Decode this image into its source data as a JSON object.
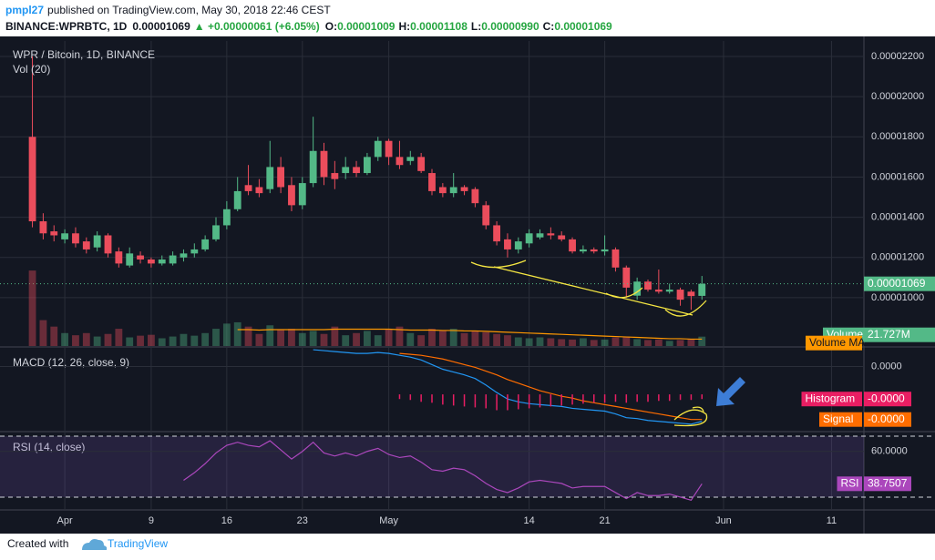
{
  "header": {
    "author": "pmpl27",
    "published": "published on TradingView.com, May 30, 2018 22:46 CEST",
    "symbol": "BINANCE:WPRBTC, 1D",
    "last": "0.00001069",
    "change": "▲ +0.00000061 (+6.05%)",
    "ohlc": [
      {
        "label": "O:",
        "value": "0.00001009"
      },
      {
        "label": "H:",
        "value": "0.00001108"
      },
      {
        "label": "L:",
        "value": "0.00000990"
      },
      {
        "label": "C:",
        "value": "0.00001069"
      }
    ]
  },
  "chart_data": [
    {
      "type": "candlestick",
      "title": "WPR / Bitcoin, 1D, BINANCE",
      "up_color": "#53b987",
      "down_color": "#eb4d5c",
      "grid": true,
      "x": [
        "2018-03-29",
        "2018-03-30",
        "2018-03-31",
        "2018-04-01",
        "2018-04-02",
        "2018-04-03",
        "2018-04-04",
        "2018-04-05",
        "2018-04-06",
        "2018-04-07",
        "2018-04-08",
        "2018-04-09",
        "2018-04-10",
        "2018-04-11",
        "2018-04-12",
        "2018-04-13",
        "2018-04-14",
        "2018-04-15",
        "2018-04-16",
        "2018-04-17",
        "2018-04-18",
        "2018-04-19",
        "2018-04-20",
        "2018-04-21",
        "2018-04-22",
        "2018-04-23",
        "2018-04-24",
        "2018-04-25",
        "2018-04-26",
        "2018-04-27",
        "2018-04-28",
        "2018-04-29",
        "2018-04-30",
        "2018-05-01",
        "2018-05-02",
        "2018-05-03",
        "2018-05-04",
        "2018-05-05",
        "2018-05-06",
        "2018-05-07",
        "2018-05-08",
        "2018-05-09",
        "2018-05-10",
        "2018-05-11",
        "2018-05-12",
        "2018-05-13",
        "2018-05-14",
        "2018-05-15",
        "2018-05-16",
        "2018-05-17",
        "2018-05-18",
        "2018-05-19",
        "2018-05-20",
        "2018-05-21",
        "2018-05-22",
        "2018-05-23",
        "2018-05-24",
        "2018-05-25",
        "2018-05-26",
        "2018-05-27",
        "2018-05-28",
        "2018-05-29",
        "2018-05-30"
      ],
      "open": [
        1.8e-05,
        1.38e-05,
        1.33e-05,
        1.29e-05,
        1.32e-05,
        1.28e-05,
        1.25e-05,
        1.31e-05,
        1.23e-05,
        1.16e-05,
        1.21e-05,
        1.19e-05,
        1.17e-05,
        1.17e-05,
        1.2e-05,
        1.22e-05,
        1.24e-05,
        1.29e-05,
        1.36e-05,
        1.44e-05,
        1.56e-05,
        1.55e-05,
        1.54e-05,
        1.65e-05,
        1.56e-05,
        1.46e-05,
        1.57e-05,
        1.73e-05,
        1.62e-05,
        1.62e-05,
        1.65e-05,
        1.62e-05,
        1.7e-05,
        1.78e-05,
        1.7e-05,
        1.68e-05,
        1.7e-05,
        1.62e-05,
        1.55e-05,
        1.52e-05,
        1.55e-05,
        1.54e-05,
        1.46e-05,
        1.36e-05,
        1.29e-05,
        1.24e-05,
        1.27e-05,
        1.3e-05,
        1.32e-05,
        1.31e-05,
        1.29e-05,
        1.23e-05,
        1.24e-05,
        1.23e-05,
        1.24e-05,
        1.15e-05,
        1.01e-05,
        1.08e-05,
        1.04e-05,
        1.03e-05,
        1.04e-05,
        1.03e-05,
        1.009e-05
      ],
      "high": [
        2.2e-05,
        1.42e-05,
        1.36e-05,
        1.34e-05,
        1.35e-05,
        1.3e-05,
        1.33e-05,
        1.32e-05,
        1.25e-05,
        1.25e-05,
        1.23e-05,
        1.2e-05,
        1.21e-05,
        1.23e-05,
        1.24e-05,
        1.27e-05,
        1.31e-05,
        1.4e-05,
        1.48e-05,
        1.6e-05,
        1.66e-05,
        1.59e-05,
        1.78e-05,
        1.7e-05,
        1.6e-05,
        1.6e-05,
        1.9e-05,
        1.77e-05,
        1.68e-05,
        1.7e-05,
        1.68e-05,
        1.72e-05,
        1.8e-05,
        1.79e-05,
        1.78e-05,
        1.73e-05,
        1.72e-05,
        1.64e-05,
        1.57e-05,
        1.62e-05,
        1.56e-05,
        1.55e-05,
        1.48e-05,
        1.38e-05,
        1.32e-05,
        1.3e-05,
        1.34e-05,
        1.34e-05,
        1.35e-05,
        1.33e-05,
        1.3e-05,
        1.26e-05,
        1.25e-05,
        1.31e-05,
        1.25e-05,
        1.16e-05,
        1.1e-05,
        1.09e-05,
        1.14e-05,
        1.07e-05,
        1.05e-05,
        1.04e-05,
        1.108e-05
      ],
      "low": [
        1.35e-05,
        1.29e-05,
        1.28e-05,
        1.27e-05,
        1.25e-05,
        1.22e-05,
        1.23e-05,
        1.2e-05,
        1.15e-05,
        1.15e-05,
        1.17e-05,
        1.15e-05,
        1.16e-05,
        1.16e-05,
        1.18e-05,
        1.2e-05,
        1.23e-05,
        1.28e-05,
        1.34e-05,
        1.43e-05,
        1.51e-05,
        1.5e-05,
        1.52e-05,
        1.52e-05,
        1.43e-05,
        1.44e-05,
        1.55e-05,
        1.56e-05,
        1.54e-05,
        1.59e-05,
        1.6e-05,
        1.61e-05,
        1.68e-05,
        1.66e-05,
        1.64e-05,
        1.66e-05,
        1.62e-05,
        1.51e-05,
        1.5e-05,
        1.5e-05,
        1.51e-05,
        1.45e-05,
        1.34e-05,
        1.26e-05,
        1.2e-05,
        1.22e-05,
        1.25e-05,
        1.29e-05,
        1.29e-05,
        1.28e-05,
        1.22e-05,
        1.22e-05,
        1.22e-05,
        1.21e-05,
        1.13e-05,
        1e-05,
        9.9e-06,
        1.03e-05,
        1.02e-05,
        1.02e-05,
        9.6e-06,
        9.4e-06,
        9.9e-06
      ],
      "close": [
        1.38e-05,
        1.32e-05,
        1.31e-05,
        1.32e-05,
        1.27e-05,
        1.24e-05,
        1.31e-05,
        1.22e-05,
        1.17e-05,
        1.22e-05,
        1.19e-05,
        1.17e-05,
        1.19e-05,
        1.21e-05,
        1.22e-05,
        1.24e-05,
        1.29e-05,
        1.36e-05,
        1.44e-05,
        1.53e-05,
        1.53e-05,
        1.52e-05,
        1.65e-05,
        1.55e-05,
        1.46e-05,
        1.57e-05,
        1.73e-05,
        1.6e-05,
        1.59e-05,
        1.65e-05,
        1.62e-05,
        1.7e-05,
        1.78e-05,
        1.7e-05,
        1.66e-05,
        1.7e-05,
        1.63e-05,
        1.53e-05,
        1.52e-05,
        1.55e-05,
        1.53e-05,
        1.47e-05,
        1.36e-05,
        1.28e-05,
        1.24e-05,
        1.28e-05,
        1.32e-05,
        1.32e-05,
        1.31e-05,
        1.29e-05,
        1.23e-05,
        1.24e-05,
        1.23e-05,
        1.24e-05,
        1.15e-05,
        1.05e-05,
        1.08e-05,
        1.04e-05,
        1.03e-05,
        1.04e-05,
        9.9e-06,
        1.008e-05,
        1.069e-05
      ],
      "last_label": "0.00001069",
      "xlim": [
        "2018-03-26",
        "2018-06-14"
      ],
      "xticks": [
        {
          "value": "2018-04-01",
          "label": "Apr"
        },
        {
          "value": "2018-04-09",
          "label": "9"
        },
        {
          "value": "2018-04-16",
          "label": "16"
        },
        {
          "value": "2018-04-23",
          "label": "23"
        },
        {
          "value": "2018-05-01",
          "label": "May"
        },
        {
          "value": "2018-05-14",
          "label": "14"
        },
        {
          "value": "2018-05-21",
          "label": "21"
        },
        {
          "value": "2018-06-01",
          "label": "Jun"
        },
        {
          "value": "2018-06-11",
          "label": "11"
        }
      ],
      "ylim": [
        7.55e-06,
        2.277e-05
      ],
      "yticks": [
        {
          "value": 1e-05,
          "label": "0.00001000"
        },
        {
          "value": 1.2e-05,
          "label": "0.00001200"
        },
        {
          "value": 1.4e-05,
          "label": "0.00001400"
        },
        {
          "value": 1.6e-05,
          "label": "0.00001600"
        },
        {
          "value": 1.8e-05,
          "label": "0.00001800"
        },
        {
          "value": 2e-05,
          "label": "0.00002000"
        },
        {
          "value": 2.2e-05,
          "label": "0.00002200"
        }
      ]
    },
    {
      "type": "bar",
      "title": "Vol (20)",
      "ylim": [
        0,
        190000000
      ],
      "series": [
        {
          "name": "Volume",
          "last_label": "21.727M",
          "values": [
            175000000,
            60000000,
            45000000,
            30000000,
            25000000,
            30000000,
            22000000,
            28000000,
            40000000,
            20000000,
            24000000,
            26000000,
            18000000,
            22000000,
            28000000,
            24000000,
            30000000,
            40000000,
            52000000,
            55000000,
            45000000,
            28000000,
            48000000,
            38000000,
            40000000,
            30000000,
            35000000,
            28000000,
            45000000,
            25000000,
            30000000,
            35000000,
            25000000,
            40000000,
            45000000,
            30000000,
            25000000,
            40000000,
            35000000,
            40000000,
            30000000,
            35000000,
            32000000,
            28000000,
            25000000,
            20000000,
            18000000,
            20000000,
            18000000,
            16000000,
            15000000,
            18000000,
            14000000,
            15000000,
            20000000,
            22000000,
            16000000,
            14000000,
            15000000,
            12000000,
            14000000,
            16000000,
            21727000
          ]
        },
        {
          "name": "Volume MA",
          "color": "#ff9800",
          "values": [
            null,
            null,
            null,
            null,
            null,
            null,
            null,
            null,
            null,
            null,
            null,
            null,
            null,
            null,
            null,
            null,
            null,
            null,
            null,
            38000000,
            38000000,
            37000000,
            38000000,
            38000000,
            38000000,
            38000000,
            38000000,
            38000000,
            39000000,
            39000000,
            39000000,
            39000000,
            39000000,
            39000000,
            38000000,
            37000000,
            37000000,
            37000000,
            36000000,
            36000000,
            35000000,
            35000000,
            34000000,
            33000000,
            32000000,
            31000000,
            30000000,
            29000000,
            28000000,
            27000000,
            26000000,
            25000000,
            24000000,
            23000000,
            22000000,
            21000000,
            20000000,
            19000000,
            18000000,
            17000000,
            17000000,
            16000000,
            16000000
          ]
        }
      ]
    },
    {
      "type": "line",
      "title": "MACD (12, 26, close, 9)",
      "ylim": [
        -7e-07,
        2e-07
      ],
      "yticks": [
        {
          "value": 0,
          "label": "0.0000"
        }
      ],
      "y2lim": [
        -4e-07,
        5e-07
      ],
      "series": [
        {
          "color": "#2196f3",
          "values": [
            null,
            null,
            null,
            null,
            null,
            null,
            null,
            null,
            null,
            null,
            null,
            null,
            null,
            null,
            null,
            null,
            null,
            null,
            null,
            null,
            null,
            null,
            null,
            null,
            null,
            null,
            1.8e-07,
            1.7e-07,
            1.6e-07,
            1.5e-07,
            1.4e-07,
            1.4e-07,
            1.5e-07,
            1.4e-07,
            1.2e-07,
            1e-07,
            7e-08,
            2e-08,
            -3e-08,
            -6e-08,
            -9e-08,
            -1.3e-07,
            -2e-07,
            -2.8e-07,
            -3.5e-07,
            -3.8e-07,
            -4e-07,
            -4.1e-07,
            -4.2e-07,
            -4.3e-07,
            -4.5e-07,
            -4.6e-07,
            -4.7e-07,
            -4.8e-07,
            -5.1e-07,
            -5.5e-07,
            -5.6e-07,
            -5.8e-07,
            -5.9e-07,
            -6e-07,
            -6.1e-07,
            -6.2e-07,
            -5.9e-07
          ]
        },
        {
          "name": "Signal",
          "color": "#ff6d00",
          "last_label": "-0.0000",
          "values": [
            null,
            null,
            null,
            null,
            null,
            null,
            null,
            null,
            null,
            null,
            null,
            null,
            null,
            null,
            null,
            null,
            null,
            null,
            null,
            null,
            null,
            null,
            null,
            null,
            null,
            null,
            null,
            null,
            null,
            null,
            null,
            null,
            null,
            null,
            1.4e-07,
            1.3e-07,
            1.2e-07,
            1e-07,
            8e-08,
            5e-08,
            2e-08,
            -1e-08,
            -5e-08,
            -9e-08,
            -1.4e-07,
            -1.8e-07,
            -2.2e-07,
            -2.6e-07,
            -2.9e-07,
            -3.2e-07,
            -3.4e-07,
            -3.7e-07,
            -3.9e-07,
            -4.1e-07,
            -4.3e-07,
            -4.5e-07,
            -4.7e-07,
            -4.9e-07,
            -5.1e-07,
            -5.3e-07,
            -5.5e-07,
            -5.7e-07,
            -5.7e-07
          ]
        },
        {
          "name": "Histogram",
          "color": "#e91e63",
          "axis": "y2",
          "last_label": "-0.0000",
          "values": [
            null,
            null,
            null,
            null,
            null,
            null,
            null,
            null,
            null,
            null,
            null,
            null,
            null,
            null,
            null,
            null,
            null,
            null,
            null,
            null,
            null,
            null,
            null,
            null,
            null,
            null,
            null,
            null,
            null,
            null,
            null,
            null,
            null,
            null,
            -5e-08,
            -6e-08,
            -8e-08,
            -9e-08,
            -1.1e-07,
            -1.2e-07,
            -1.3e-07,
            -1.4e-07,
            -1.5e-07,
            -1.7e-07,
            -1.7e-07,
            -1.6e-07,
            -1.5e-07,
            -1.4e-07,
            -1.3e-07,
            -1.2e-07,
            -1.1e-07,
            -1e-07,
            -9e-08,
            -9e-08,
            -8e-08,
            -9e-08,
            -8e-08,
            -8e-08,
            -7e-08,
            -7e-08,
            -6e-08,
            -6e-08,
            -5e-08
          ]
        }
      ]
    },
    {
      "type": "line",
      "title": "RSI (14, close)",
      "ylim": [
        21.6,
        72.4
      ],
      "yticks": [
        {
          "value": 60,
          "label": "60.0000"
        }
      ],
      "bands": [
        30,
        70
      ],
      "series": [
        {
          "name": "RSI",
          "color": "#ab47bc",
          "last_label": "38.7507",
          "values": [
            null,
            null,
            null,
            null,
            null,
            null,
            null,
            null,
            null,
            null,
            null,
            null,
            null,
            null,
            41,
            46,
            52,
            59,
            64,
            66,
            64,
            63,
            67,
            61,
            55,
            60,
            66,
            59,
            57,
            59,
            57,
            60,
            62,
            58,
            56,
            57,
            53,
            48,
            47,
            49,
            48,
            44,
            39,
            35,
            33,
            36,
            40,
            41,
            40,
            39,
            36,
            37,
            37,
            37,
            33,
            29,
            33,
            31,
            31,
            32,
            30,
            28,
            38.7507
          ]
        }
      ]
    }
  ],
  "footer": {
    "created": "Created with",
    "brand": "TradingView"
  }
}
